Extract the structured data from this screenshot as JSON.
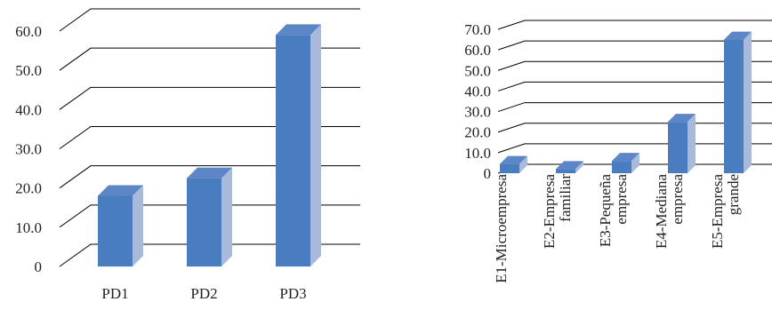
{
  "chart_data": [
    {
      "type": "bar",
      "categories": [
        "PD1",
        "PD2",
        "PD3"
      ],
      "values": [
        18.0,
        22.5,
        59.0
      ],
      "ylim": [
        0,
        60
      ],
      "yticks": [
        "0",
        "10.0",
        "20.0",
        "30.0",
        "40.0",
        "50.0",
        "60.0"
      ],
      "grid": true,
      "colors": {
        "front": "#4a7cc0",
        "side": "#a9b9da",
        "top": "#5d86c6"
      }
    },
    {
      "type": "bar",
      "categories": [
        "E1-Microempresa",
        "E2-Empresa familiar",
        "E3-Pequeña empresa",
        "E4-Mediana empresa",
        "E5-Empresa grande"
      ],
      "category_lines": [
        [
          "E1-Microempresa"
        ],
        [
          "E2-Empresa",
          "familiar"
        ],
        [
          "E3-Pequeña",
          "empresa"
        ],
        [
          "E4-Mediana",
          "empresa"
        ],
        [
          "E5-Empresa",
          "grande"
        ]
      ],
      "values": [
        4.5,
        2.0,
        6.0,
        25.0,
        65.0
      ],
      "ylim": [
        0,
        70
      ],
      "yticks": [
        "0",
        "10.0",
        "20.0",
        "30.0",
        "40.0",
        "50.0",
        "60.0",
        "70.0"
      ],
      "grid": true,
      "colors": {
        "front": "#4a7cc0",
        "side": "#a9b9da",
        "top": "#5d86c6"
      }
    }
  ]
}
